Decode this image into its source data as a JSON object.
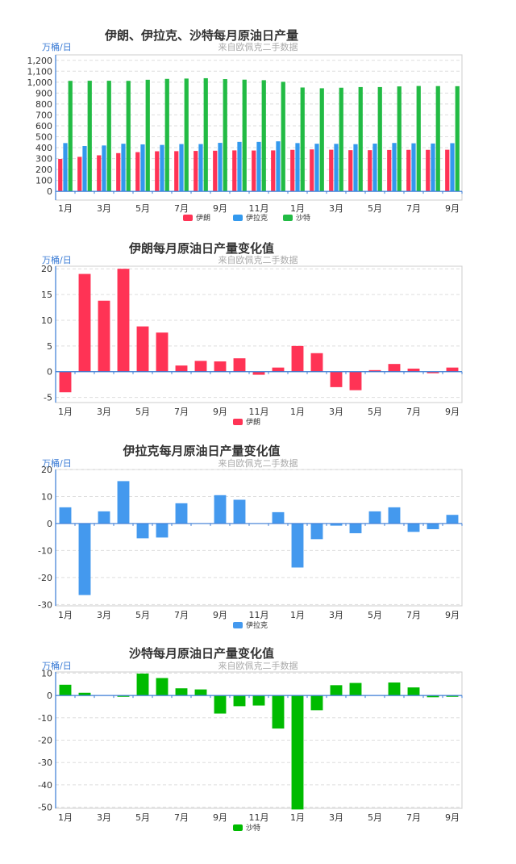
{
  "colors": {
    "iran": "#ff3355",
    "iraq": "#3399ee",
    "saudi": "#22bb44",
    "axis": "#3a7bd5"
  },
  "chart_data": [
    {
      "type": "bar",
      "title": "伊朗、伊拉克、沙特每月原油日产量",
      "subtitle": "来自欧佩克二手数据",
      "ylabel": "万桶/日",
      "ylim": [
        -80,
        1250
      ],
      "yticks": [
        0,
        100,
        200,
        300,
        400,
        500,
        600,
        700,
        800,
        900,
        1000,
        1100,
        1200
      ],
      "ytick_labels": [
        "0",
        "100",
        "200",
        "300",
        "400",
        "500",
        "600",
        "700",
        "800",
        "900",
        "1,000",
        "1,100",
        "1,200"
      ],
      "xtick_labels": [
        "1月",
        "3月",
        "5月",
        "7月",
        "9月",
        "11月",
        "1月",
        "3月",
        "5月",
        "7月",
        "9月"
      ],
      "n_categories": 21,
      "series": [
        {
          "name": "伊朗",
          "color": "#ff3355",
          "values": [
            297,
            316,
            330,
            350,
            359,
            367,
            368,
            370,
            372,
            375,
            374,
            375,
            380,
            384,
            381,
            377,
            377,
            379,
            380,
            380,
            381
          ]
        },
        {
          "name": "伊拉克",
          "color": "#3399ee",
          "values": [
            442,
            415,
            420,
            436,
            430,
            425,
            433,
            433,
            444,
            453,
            453,
            458,
            442,
            436,
            435,
            432,
            437,
            443,
            440,
            438,
            441
          ]
        },
        {
          "name": "沙特",
          "color": "#22bb44",
          "values": [
            1012,
            1013,
            1013,
            1012,
            1022,
            1030,
            1033,
            1036,
            1028,
            1023,
            1018,
            1003,
            951,
            944,
            949,
            955,
            955,
            961,
            965,
            964,
            963
          ]
        }
      ]
    },
    {
      "type": "bar",
      "title": "伊朗每月原油日产量变化值",
      "subtitle": "来自欧佩克二手数据",
      "ylabel": "万桶/日",
      "ylim": [
        -6,
        20.5
      ],
      "yticks": [
        -5,
        0,
        5,
        10,
        15,
        20
      ],
      "ytick_labels": [
        "-5",
        "0",
        "5",
        "10",
        "15",
        "20"
      ],
      "xtick_labels": [
        "1月",
        "3月",
        "5月",
        "7月",
        "9月",
        "11月",
        "1月",
        "3月",
        "5月",
        "7月",
        "9月"
      ],
      "n_categories": 21,
      "series": [
        {
          "name": "伊朗",
          "color": "#ff3355",
          "values": [
            -4,
            19,
            13.8,
            20,
            8.8,
            7.6,
            1.2,
            2.1,
            2,
            2.6,
            -0.6,
            0.8,
            5,
            3.6,
            -3,
            -3.6,
            0.3,
            1.5,
            0.6,
            -0.3,
            0.8
          ]
        }
      ]
    },
    {
      "type": "bar",
      "title": "伊拉克每月原油日产量变化值",
      "subtitle": "来自欧佩克二手数据",
      "ylabel": "万桶/日",
      "ylim": [
        -30.5,
        20
      ],
      "yticks": [
        -30,
        -20,
        -10,
        0,
        10,
        20
      ],
      "ytick_labels": [
        "-30",
        "-20",
        "-10",
        "0",
        "10",
        "20"
      ],
      "xtick_labels": [
        "1月",
        "3月",
        "5月",
        "7月",
        "9月",
        "11月",
        "1月",
        "3月",
        "5月",
        "7月",
        "9月"
      ],
      "n_categories": 21,
      "series": [
        {
          "name": "伊拉克",
          "color": "#4499ee",
          "values": [
            6,
            -26.5,
            4.5,
            15.7,
            -5.5,
            -5.2,
            7.5,
            0,
            10.5,
            8.8,
            0,
            4.2,
            -16.3,
            -5.8,
            -0.8,
            -3.6,
            4.5,
            6,
            -3.1,
            -2.1,
            3.2
          ]
        }
      ]
    },
    {
      "type": "bar",
      "title": "沙特每月原油日产量变化值",
      "subtitle": "来自欧佩克二手数据",
      "ylabel": "万桶/日",
      "ylim": [
        -50.5,
        10.5
      ],
      "yticks": [
        -50,
        -40,
        -30,
        -20,
        -10,
        0,
        10
      ],
      "ytick_labels": [
        "-50",
        "-40",
        "-30",
        "-20",
        "-10",
        "0",
        "10"
      ],
      "xtick_labels": [
        "1月",
        "3月",
        "5月",
        "7月",
        "9月",
        "11月",
        "1月",
        "3月",
        "5月",
        "7月",
        "9月"
      ],
      "n_categories": 21,
      "series": [
        {
          "name": "沙特",
          "color": "#00bb00",
          "values": [
            4.8,
            1.2,
            0,
            -0.6,
            9.8,
            7.8,
            3.2,
            2.7,
            -8.1,
            -4.8,
            -4.5,
            -14.8,
            -51,
            -6.6,
            4.6,
            5.6,
            0,
            5.8,
            3.6,
            -0.8,
            -0.6
          ]
        }
      ]
    }
  ]
}
